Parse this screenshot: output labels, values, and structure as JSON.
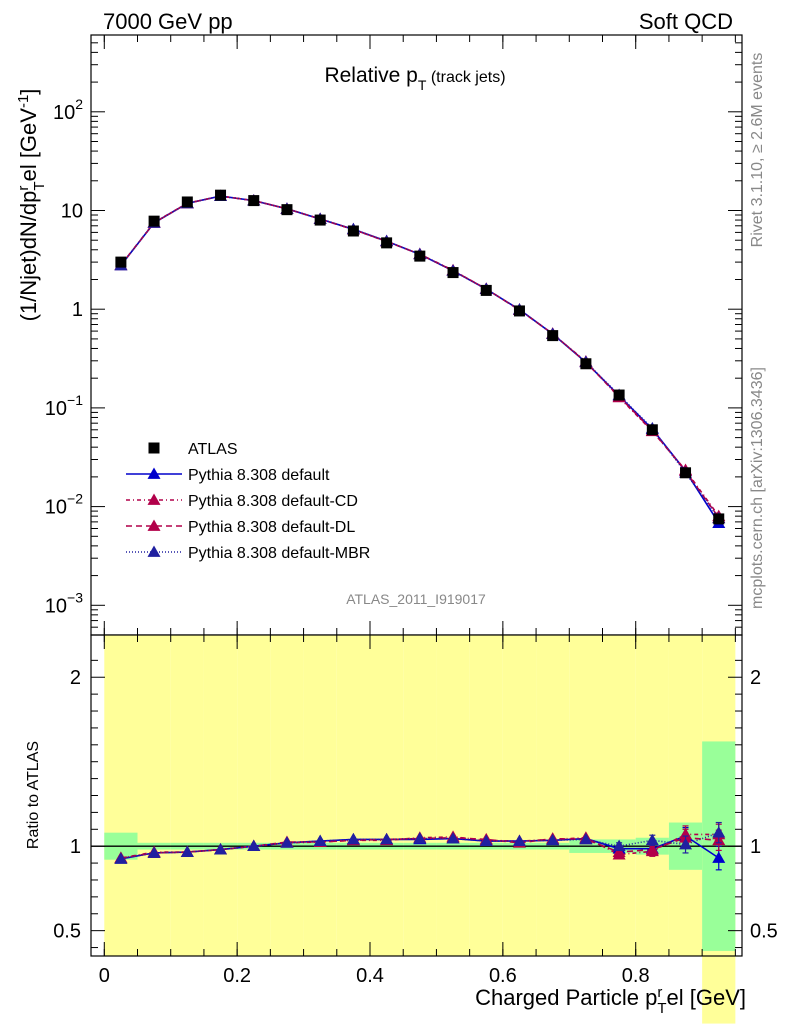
{
  "header": {
    "left": "7000 GeV pp",
    "right": "Soft QCD"
  },
  "side": {
    "rivet": "Rivet 3.1.10, ≥ 2.6M events",
    "mcplots": "mcplots.cern.ch [arXiv:1306.3436]"
  },
  "plot_title_main": "Relative p",
  "plot_title_sub": "T",
  "plot_title_suffix": " (track jets)",
  "analysis_label": "ATLAS_2011_I919017",
  "chart_data": [
    {
      "type": "scatter",
      "title": "Relative pT (track jets)",
      "ylabel": "(1/Njet)dN/dp_T^rel [GeV^-1]",
      "yscale": "log",
      "ylim": [
        0.0005,
        600
      ],
      "xlim": [
        -0.02,
        0.96
      ],
      "y_ticks": [
        {
          "v": 0.001,
          "m": "10",
          "e": "−3"
        },
        {
          "v": 0.01,
          "m": "10",
          "e": "−2"
        },
        {
          "v": 0.1,
          "m": "10",
          "e": "−1"
        },
        {
          "v": 1,
          "m": "1",
          "e": ""
        },
        {
          "v": 10,
          "m": "10",
          "e": ""
        },
        {
          "v": 100,
          "m": "10",
          "e": "2"
        }
      ],
      "legend_position": "bottom-left",
      "legend": [
        {
          "name": "ATLAS",
          "color": "#000000",
          "dash": "",
          "marker": "square"
        },
        {
          "name": "Pythia 8.308 default",
          "color": "#0000cc",
          "dash": "",
          "marker": "triangle"
        },
        {
          "name": "Pythia 8.308 default-CD",
          "color": "#b2004a",
          "dash": "4,3,1,3",
          "marker": "triangle"
        },
        {
          "name": "Pythia 8.308 default-DL",
          "color": "#b2004a",
          "dash": "6,4",
          "marker": "triangle"
        },
        {
          "name": "Pythia 8.308 default-MBR",
          "color": "#2020a0",
          "dash": "1,2",
          "marker": "triangle"
        }
      ],
      "x": [
        0.025,
        0.075,
        0.125,
        0.175,
        0.225,
        0.275,
        0.325,
        0.375,
        0.425,
        0.475,
        0.525,
        0.575,
        0.625,
        0.675,
        0.725,
        0.775,
        0.825,
        0.875,
        0.925
      ],
      "atlas": [
        3.0,
        7.8,
        12.2,
        14.3,
        12.6,
        10.2,
        8.0,
        6.2,
        4.7,
        3.45,
        2.35,
        1.55,
        0.96,
        0.54,
        0.28,
        0.135,
        0.06,
        0.022,
        0.0075
      ],
      "series": [
        {
          "name": "Pythia 8.308 default",
          "color": "#0000cc",
          "dash": "",
          "values": [
            2.78,
            7.5,
            11.8,
            14.0,
            12.6,
            10.4,
            8.2,
            6.45,
            4.9,
            3.6,
            2.45,
            1.6,
            0.99,
            0.56,
            0.29,
            0.133,
            0.061,
            0.023,
            0.0068
          ]
        },
        {
          "name": "Pythia 8.308 default-CD",
          "color": "#b2004a",
          "dash": "4,3,1,3",
          "values": [
            2.8,
            7.55,
            11.85,
            14.0,
            12.6,
            10.4,
            8.2,
            6.4,
            4.85,
            3.62,
            2.48,
            1.6,
            0.99,
            0.56,
            0.295,
            0.128,
            0.058,
            0.0235,
            0.008
          ]
        },
        {
          "name": "Pythia 8.308 default-DL",
          "color": "#b2004a",
          "dash": "6,4",
          "values": [
            2.79,
            7.5,
            11.8,
            14.0,
            12.6,
            10.4,
            8.2,
            6.42,
            4.88,
            3.6,
            2.46,
            1.61,
            0.98,
            0.565,
            0.29,
            0.13,
            0.059,
            0.023,
            0.0077
          ]
        },
        {
          "name": "Pythia 8.308 default-MBR",
          "color": "#2020a0",
          "dash": "1,2",
          "values": [
            2.78,
            7.5,
            11.8,
            14.0,
            12.6,
            10.4,
            8.2,
            6.45,
            4.88,
            3.6,
            2.45,
            1.6,
            0.99,
            0.56,
            0.292,
            0.135,
            0.062,
            0.022,
            0.0076
          ]
        }
      ]
    },
    {
      "type": "scatter",
      "ylabel": "Ratio to ATLAS",
      "xlabel": "Charged Particle p_T^rel [GeV]",
      "ylim": [
        0.35,
        2.25
      ],
      "xlim": [
        -0.02,
        0.96
      ],
      "x_ticks": [
        0,
        0.2,
        0.4,
        0.6,
        0.8
      ],
      "x_tick_labels": [
        "0",
        "0.2",
        "0.4",
        "0.6",
        "0.8"
      ],
      "y_ticks": [
        0.5,
        1,
        2
      ],
      "y_tick_labels": [
        "0.5",
        "1",
        "2"
      ],
      "bin_edges": [
        0,
        0.05,
        0.1,
        0.15,
        0.2,
        0.25,
        0.3,
        0.35,
        0.4,
        0.45,
        0.5,
        0.55,
        0.6,
        0.65,
        0.7,
        0.75,
        0.8,
        0.85,
        0.9,
        0.95
      ],
      "band_green_halfwidth": [
        0.08,
        0.02,
        0.02,
        0.02,
        0.02,
        0.02,
        0.02,
        0.02,
        0.02,
        0.02,
        0.02,
        0.02,
        0.02,
        0.02,
        0.04,
        0.04,
        0.05,
        0.14,
        0.62
      ],
      "band_yellow_halfwidth": [
        0.14,
        0.04,
        0.04,
        0.04,
        0.04,
        0.04,
        0.04,
        0.04,
        0.04,
        0.04,
        0.04,
        0.04,
        0.04,
        0.04,
        0.07,
        0.08,
        0.12,
        0.3,
        1.05
      ],
      "x": [
        0.025,
        0.075,
        0.125,
        0.175,
        0.225,
        0.275,
        0.325,
        0.375,
        0.425,
        0.475,
        0.525,
        0.575,
        0.625,
        0.675,
        0.725,
        0.775,
        0.825,
        0.875,
        0.925
      ],
      "series": [
        {
          "name": "Pythia 8.308 default",
          "color": "#0000cc",
          "dash": "",
          "values": [
            0.925,
            0.96,
            0.965,
            0.98,
            1.0,
            1.02,
            1.03,
            1.04,
            1.04,
            1.04,
            1.045,
            1.03,
            1.03,
            1.035,
            1.045,
            0.985,
            0.985,
            1.06,
            0.93
          ],
          "errors": [
            0,
            0,
            0,
            0,
            0,
            0,
            0,
            0,
            0,
            0,
            0,
            0,
            0,
            0,
            0,
            0.02,
            0.03,
            0.05,
            0.07
          ]
        },
        {
          "name": "Pythia 8.308 default-CD",
          "color": "#b2004a",
          "dash": "4,3,1,3",
          "values": [
            0.93,
            0.965,
            0.965,
            0.98,
            1.0,
            1.02,
            1.025,
            1.035,
            1.035,
            1.05,
            1.055,
            1.035,
            1.03,
            1.04,
            1.05,
            0.95,
            0.97,
            1.07,
            1.07
          ],
          "errors": [
            0,
            0,
            0,
            0,
            0,
            0,
            0,
            0,
            0,
            0,
            0,
            0,
            0,
            0,
            0,
            0.02,
            0.03,
            0.05,
            0.06
          ]
        },
        {
          "name": "Pythia 8.308 default-DL",
          "color": "#b2004a",
          "dash": "6,4",
          "values": [
            0.93,
            0.96,
            0.965,
            0.98,
            1.0,
            1.025,
            1.025,
            1.035,
            1.04,
            1.045,
            1.05,
            1.04,
            1.02,
            1.045,
            1.04,
            0.965,
            0.98,
            1.05,
            1.035
          ],
          "errors": [
            0,
            0,
            0,
            0,
            0,
            0,
            0,
            0,
            0,
            0,
            0,
            0,
            0,
            0,
            0,
            0.02,
            0.03,
            0.05,
            0.06
          ]
        },
        {
          "name": "Pythia 8.308 default-MBR",
          "color": "#2020a0",
          "dash": "1,2",
          "values": [
            0.925,
            0.96,
            0.965,
            0.98,
            1.0,
            1.02,
            1.03,
            1.04,
            1.04,
            1.045,
            1.045,
            1.03,
            1.03,
            1.035,
            1.04,
            1.0,
            1.035,
            1.01,
            1.08
          ],
          "errors": [
            0,
            0,
            0,
            0,
            0,
            0,
            0,
            0,
            0,
            0,
            0,
            0,
            0,
            0,
            0,
            0.02,
            0.03,
            0.05,
            0.06
          ]
        }
      ]
    }
  ]
}
